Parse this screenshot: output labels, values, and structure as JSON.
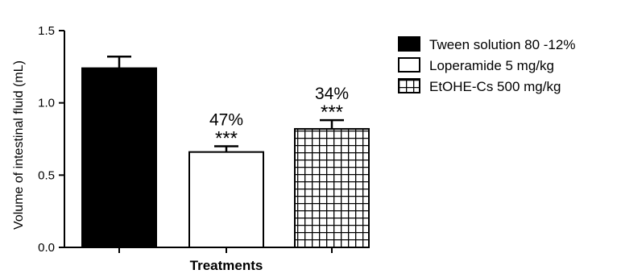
{
  "chart_data": {
    "type": "bar",
    "xlabel": "Treatments",
    "ylabel": "Volume of intestinal fluid (mL)",
    "ylim": [
      0,
      1.5
    ],
    "yticks": [
      "0.0",
      "0.5",
      "1.0",
      "1.5"
    ],
    "grid": false,
    "legend_position": "right",
    "series": [
      {
        "name": "Tween solution 80 -12%",
        "value": 1.24,
        "error": 0.08,
        "fill": "solid",
        "color": "#000000",
        "pct": "",
        "sig": ""
      },
      {
        "name": "Loperamide 5 mg/kg",
        "value": 0.66,
        "error": 0.04,
        "fill": "empty",
        "color": "#ffffff",
        "pct": "47%",
        "sig": "***"
      },
      {
        "name": "EtOHE-Cs 500 mg/kg",
        "value": 0.82,
        "error": 0.06,
        "fill": "grid",
        "color": "#000000",
        "pct": "34%",
        "sig": "***"
      }
    ]
  }
}
